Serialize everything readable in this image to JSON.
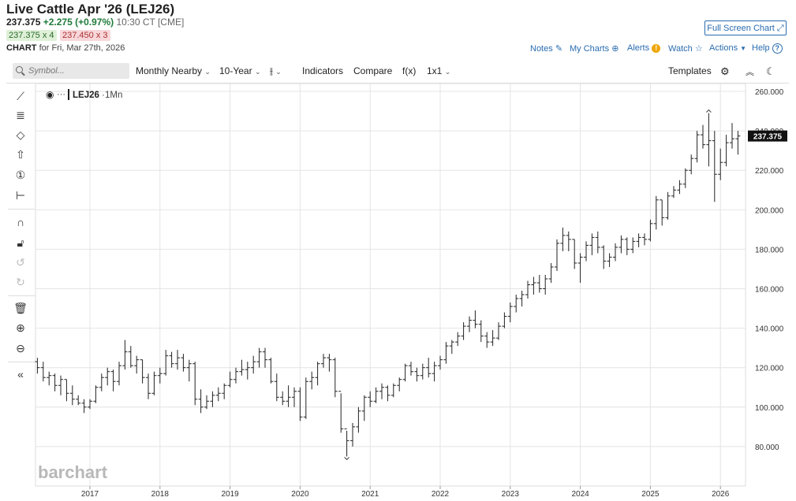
{
  "header": {
    "title": "Live Cattle Apr '26 (LEJ26)",
    "last": "237.375",
    "change": "+2.275 (+0.97%)",
    "time": "10:30 CT [CME]",
    "bid": "237.375 x 4",
    "ask": "237.450 x 3",
    "chart_label": "CHART",
    "chart_for": "for Fri, Mar 27th, 2026",
    "full_screen": "Full Screen Chart"
  },
  "top_links": {
    "notes": "Notes",
    "my_charts": "My Charts",
    "alerts": "Alerts",
    "watch": "Watch",
    "actions": "Actions",
    "help": "Help"
  },
  "toolbar": {
    "symbol_placeholder": "Symbol...",
    "period": "Monthly Nearby",
    "range": "10-Year",
    "bar_type_glyph": "⫲",
    "indicators": "Indicators",
    "compare": "Compare",
    "fx": "f(x)",
    "layout": "1x1",
    "templates": "Templates"
  },
  "legend": {
    "symbol": "LEJ26",
    "interval": "1Mn"
  },
  "watermark": "barchart",
  "colors": {
    "link": "#2a6cb0",
    "positive": "#1f7a3a",
    "price_tag_bg": "#111111",
    "bar": "#222222"
  },
  "chart_data": {
    "type": "ohlc",
    "x_ticks": [
      "2017",
      "2018",
      "2019",
      "2020",
      "2021",
      "2022",
      "2023",
      "2024",
      "2025",
      "2026"
    ],
    "y_ticks": [
      "260.000",
      "240.000",
      "220.000",
      "200.000",
      "180.000",
      "160.000",
      "140.000",
      "120.000",
      "100.000",
      "80.000"
    ],
    "ylim": [
      60,
      264
    ],
    "x_start": "2016-04",
    "last_price_tag": "237.375",
    "high_marker": "249.3",
    "low_marker": "74.5",
    "bars": [
      [
        123,
        125,
        117,
        120
      ],
      [
        120,
        123,
        113,
        115
      ],
      [
        115,
        118,
        111,
        116
      ],
      [
        116,
        117,
        108,
        111
      ],
      [
        111,
        116,
        106,
        114
      ],
      [
        114,
        114,
        103,
        107
      ],
      [
        107,
        111,
        101,
        104
      ],
      [
        104,
        106,
        101,
        102
      ],
      [
        102,
        104,
        97,
        100
      ],
      [
        100,
        104,
        99,
        103
      ],
      [
        103,
        111,
        102,
        110
      ],
      [
        110,
        117,
        108,
        115
      ],
      [
        115,
        120,
        111,
        118
      ],
      [
        118,
        119,
        108,
        113
      ],
      [
        113,
        123,
        111,
        121
      ],
      [
        121,
        134,
        119,
        128
      ],
      [
        128,
        131,
        120,
        121
      ],
      [
        121,
        126,
        117,
        124
      ],
      [
        124,
        124,
        112,
        115
      ],
      [
        115,
        117,
        104,
        107
      ],
      [
        107,
        118,
        106,
        116
      ],
      [
        116,
        120,
        112,
        117
      ],
      [
        117,
        129,
        116,
        126
      ],
      [
        126,
        128,
        120,
        122
      ],
      [
        122,
        129,
        119,
        125
      ],
      [
        125,
        127,
        118,
        120
      ],
      [
        120,
        124,
        113,
        122
      ],
      [
        122,
        123,
        101,
        104
      ],
      [
        104,
        109,
        97,
        100
      ],
      [
        100,
        106,
        99,
        103
      ],
      [
        103,
        108,
        100,
        106
      ],
      [
        106,
        110,
        103,
        107
      ],
      [
        107,
        112,
        104,
        111
      ],
      [
        111,
        118,
        110,
        114
      ],
      [
        114,
        120,
        112,
        118
      ],
      [
        118,
        124,
        116,
        119
      ],
      [
        119,
        123,
        114,
        120
      ],
      [
        120,
        126,
        117,
        123
      ],
      [
        123,
        130,
        120,
        128
      ],
      [
        128,
        130,
        120,
        124
      ],
      [
        124,
        125,
        112,
        113
      ],
      [
        113,
        117,
        103,
        105
      ],
      [
        105,
        108,
        101,
        103
      ],
      [
        103,
        111,
        100,
        105
      ],
      [
        105,
        110,
        100,
        108
      ],
      [
        108,
        110,
        93,
        95
      ],
      [
        95,
        115,
        94,
        113
      ],
      [
        113,
        118,
        109,
        115
      ],
      [
        115,
        123,
        111,
        122
      ],
      [
        122,
        127,
        120,
        125
      ],
      [
        125,
        127,
        118,
        124
      ],
      [
        124,
        125,
        105,
        108
      ],
      [
        108,
        107,
        87,
        89
      ],
      [
        89,
        88,
        75,
        83
      ],
      [
        83,
        92,
        80,
        90
      ],
      [
        90,
        100,
        87,
        98
      ],
      [
        98,
        106,
        93,
        105
      ],
      [
        105,
        108,
        100,
        103
      ],
      [
        103,
        110,
        102,
        108
      ],
      [
        108,
        112,
        104,
        110
      ],
      [
        110,
        111,
        103,
        106
      ],
      [
        106,
        112,
        105,
        111
      ],
      [
        111,
        115,
        108,
        114
      ],
      [
        114,
        122,
        113,
        121
      ],
      [
        121,
        123,
        116,
        118
      ],
      [
        118,
        120,
        113,
        116
      ],
      [
        116,
        122,
        114,
        120
      ],
      [
        120,
        125,
        115,
        117
      ],
      [
        117,
        123,
        113,
        121
      ],
      [
        121,
        126,
        119,
        124
      ],
      [
        124,
        133,
        122,
        131
      ],
      [
        131,
        134,
        127,
        133
      ],
      [
        133,
        138,
        131,
        136
      ],
      [
        136,
        143,
        134,
        141
      ],
      [
        141,
        146,
        138,
        144
      ],
      [
        144,
        149,
        140,
        142
      ],
      [
        142,
        144,
        133,
        136
      ],
      [
        136,
        138,
        130,
        133
      ],
      [
        133,
        139,
        131,
        135
      ],
      [
        135,
        143,
        134,
        141
      ],
      [
        141,
        148,
        140,
        146
      ],
      [
        146,
        153,
        143,
        151
      ],
      [
        151,
        157,
        148,
        155
      ],
      [
        155,
        159,
        151,
        157
      ],
      [
        157,
        164,
        155,
        162
      ],
      [
        162,
        166,
        157,
        163
      ],
      [
        163,
        167,
        158,
        160
      ],
      [
        160,
        167,
        157,
        165
      ],
      [
        165,
        173,
        163,
        171
      ],
      [
        171,
        185,
        169,
        183
      ],
      [
        183,
        191,
        179,
        187
      ],
      [
        187,
        189,
        179,
        185
      ],
      [
        185,
        185,
        170,
        173
      ],
      [
        173,
        178,
        163,
        176
      ],
      [
        176,
        184,
        174,
        182
      ],
      [
        182,
        188,
        177,
        186
      ],
      [
        186,
        189,
        178,
        181
      ],
      [
        181,
        182,
        170,
        174
      ],
      [
        174,
        178,
        171,
        176
      ],
      [
        176,
        183,
        174,
        181
      ],
      [
        181,
        187,
        178,
        185
      ],
      [
        185,
        186,
        177,
        180
      ],
      [
        180,
        186,
        178,
        184
      ],
      [
        184,
        188,
        181,
        186
      ],
      [
        186,
        188,
        182,
        185
      ],
      [
        185,
        195,
        184,
        193
      ],
      [
        193,
        207,
        190,
        205
      ],
      [
        205,
        205,
        192,
        196
      ],
      [
        196,
        209,
        195,
        207
      ],
      [
        207,
        212,
        206,
        210
      ],
      [
        210,
        215,
        208,
        213
      ],
      [
        213,
        221,
        211,
        220
      ],
      [
        220,
        228,
        218,
        226
      ],
      [
        226,
        240,
        224,
        238
      ],
      [
        238,
        243,
        231,
        233
      ],
      [
        233,
        249,
        222,
        235
      ],
      [
        235,
        240,
        204,
        218
      ],
      [
        218,
        231,
        215,
        224
      ],
      [
        224,
        238,
        222,
        234
      ],
      [
        234,
        244,
        231,
        236
      ],
      [
        236,
        240,
        228,
        237.4
      ]
    ]
  }
}
